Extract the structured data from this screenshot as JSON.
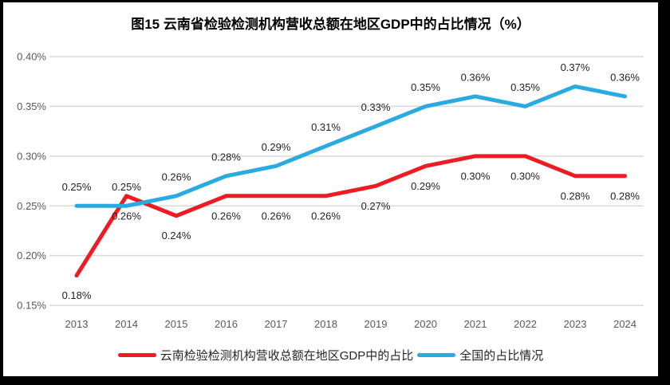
{
  "chart_data": {
    "type": "line",
    "title": "图15 云南省检验检测机构营收总额在地区GDP中的占比情况（%）",
    "categories": [
      "2013",
      "2014",
      "2015",
      "2016",
      "2017",
      "2018",
      "2019",
      "2020",
      "2021",
      "2022",
      "2023",
      "2024"
    ],
    "series": [
      {
        "name": "云南检验检测机构营收总额在地区GDP中的占比",
        "color": "#ED1C24",
        "label_position": "below",
        "values": [
          0.18,
          0.26,
          0.24,
          0.26,
          0.26,
          0.26,
          0.27,
          0.29,
          0.3,
          0.3,
          0.28,
          0.28
        ],
        "labels": [
          "0.18%",
          "0.26%",
          "0.24%",
          "0.26%",
          "0.26%",
          "0.26%",
          "0.27%",
          "0.29%",
          "0.30%",
          "0.30%",
          "0.28%",
          "0.28%"
        ]
      },
      {
        "name": "全国的占比情况",
        "color": "#29ABE2",
        "label_position": "above",
        "values": [
          0.25,
          0.25,
          0.26,
          0.28,
          0.29,
          0.31,
          0.33,
          0.35,
          0.36,
          0.35,
          0.37,
          0.36
        ],
        "labels": [
          "0.25%",
          "0.25%",
          "0.26%",
          "0.28%",
          "0.29%",
          "0.31%",
          "0.33%",
          "0.35%",
          "0.36%",
          "0.35%",
          "0.37%",
          "0.36%"
        ]
      }
    ],
    "y_axis": {
      "ticks": [
        "0.40%",
        "0.35%",
        "0.30%",
        "0.25%",
        "0.20%",
        "0.15%"
      ],
      "min": 0.15,
      "max": 0.4,
      "step": 0.05
    },
    "x_axis": {
      "label": ""
    },
    "grid": true,
    "legend_position": "bottom",
    "colors": {
      "gridline": "#D9D9D9",
      "axis_text": "#595959",
      "data_label_text": "#1f1f1f",
      "title_text": "#000000",
      "frame": "#000000",
      "background": "#FFFFFF"
    }
  }
}
